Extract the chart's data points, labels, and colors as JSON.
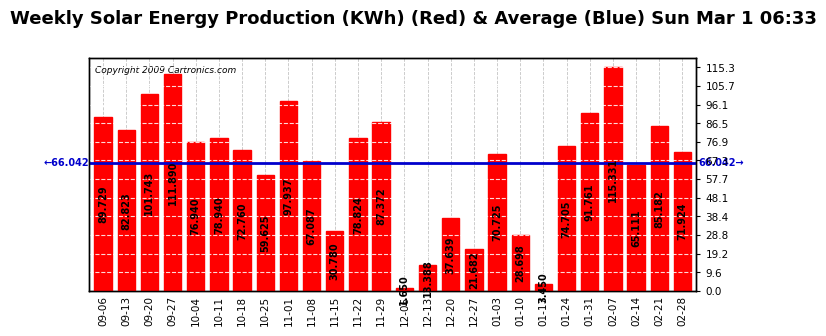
{
  "title": "Weekly Solar Energy Production (KWh) (Red) & Average (Blue) Sun Mar 1 06:33",
  "copyright": "Copyright 2009 Cartronics.com",
  "categories": [
    "09-06",
    "09-13",
    "09-20",
    "09-27",
    "10-04",
    "10-11",
    "10-18",
    "10-25",
    "11-01",
    "11-08",
    "11-15",
    "11-22",
    "11-29",
    "12-06",
    "12-13",
    "12-20",
    "12-27",
    "01-03",
    "01-10",
    "01-17",
    "01-24",
    "01-31",
    "02-07",
    "02-14",
    "02-21",
    "02-28"
  ],
  "values": [
    89.729,
    82.823,
    101.743,
    111.89,
    76.94,
    78.94,
    72.76,
    59.625,
    97.937,
    67.087,
    30.78,
    78.824,
    87.372,
    1.65,
    13.388,
    37.639,
    21.682,
    70.725,
    28.698,
    3.45,
    74.705,
    91.761,
    115.331,
    65.111,
    85.182,
    71.924
  ],
  "average": 66.042,
  "bar_color": "#ff0000",
  "average_color": "#0000cc",
  "background_color": "#ffffff",
  "plot_background": "#ffffff",
  "grid_color": "#aaaaaa",
  "yticks": [
    0.0,
    9.6,
    19.2,
    28.8,
    38.4,
    48.1,
    57.7,
    67.3,
    76.9,
    86.5,
    96.1,
    105.7,
    115.3
  ],
  "ylim": [
    0,
    120
  ],
  "title_fontsize": 13,
  "label_fontsize": 7.5,
  "value_fontsize": 7,
  "avg_label": "66.042"
}
